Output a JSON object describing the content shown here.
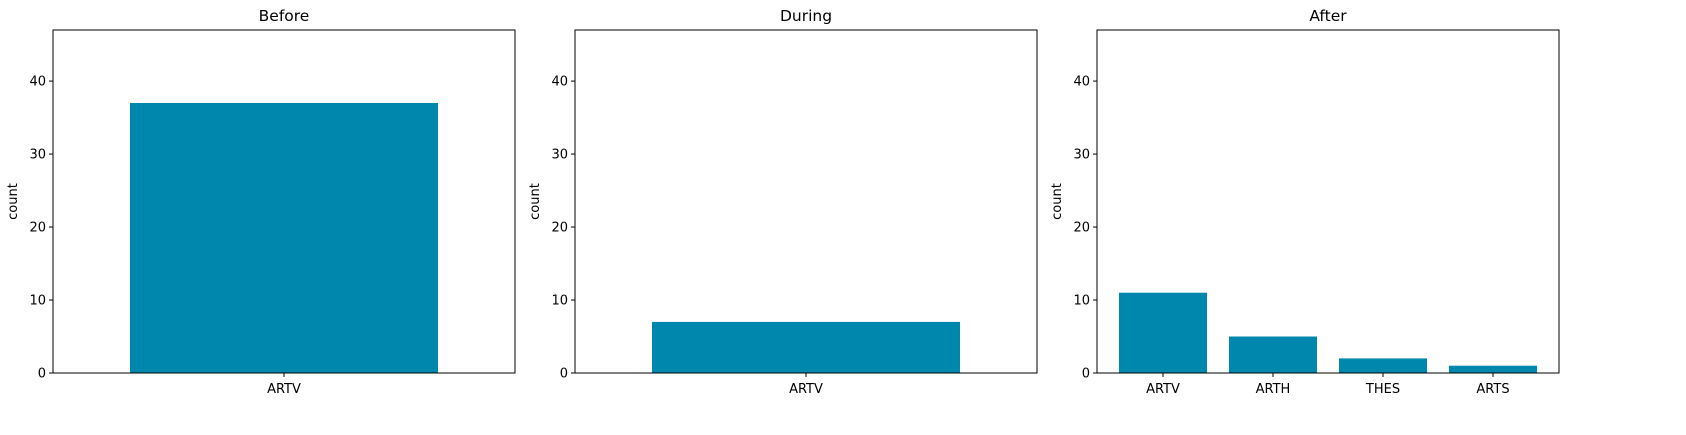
{
  "figure": {
    "bar_color": "#0087ae"
  },
  "chart_data": [
    {
      "type": "bar",
      "title": "Before",
      "ylabel": "count",
      "xlabel": "",
      "categories": [
        "ARTV"
      ],
      "values": [
        37
      ],
      "ylim": [
        0,
        47
      ],
      "yticks": [
        0,
        10,
        20,
        30,
        40
      ],
      "grid": false
    },
    {
      "type": "bar",
      "title": "During",
      "ylabel": "count",
      "xlabel": "",
      "categories": [
        "ARTV"
      ],
      "values": [
        7
      ],
      "ylim": [
        0,
        47
      ],
      "yticks": [
        0,
        10,
        20,
        30,
        40
      ],
      "grid": false
    },
    {
      "type": "bar",
      "title": "After",
      "ylabel": "count",
      "xlabel": "",
      "categories": [
        "ARTV",
        "ARTH",
        "THES",
        "ARTS"
      ],
      "values": [
        11,
        5,
        2,
        1
      ],
      "ylim": [
        0,
        47
      ],
      "yticks": [
        0,
        10,
        20,
        30,
        40
      ],
      "grid": false
    }
  ]
}
